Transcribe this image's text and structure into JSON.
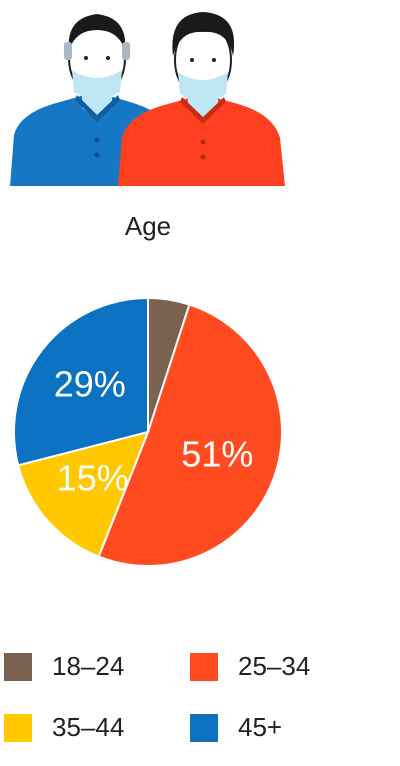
{
  "chart_data": {
    "type": "pie",
    "title": "Age",
    "categories": [
      "18–24",
      "25–34",
      "35–44",
      "45+"
    ],
    "values": [
      5,
      51,
      15,
      29
    ],
    "value_labels": [
      null,
      "51%",
      "15%",
      "29%"
    ],
    "colors": [
      "#7b6150",
      "#ff4b1f",
      "#ffc800",
      "#0a72c0"
    ],
    "legend": "bottom"
  }
}
